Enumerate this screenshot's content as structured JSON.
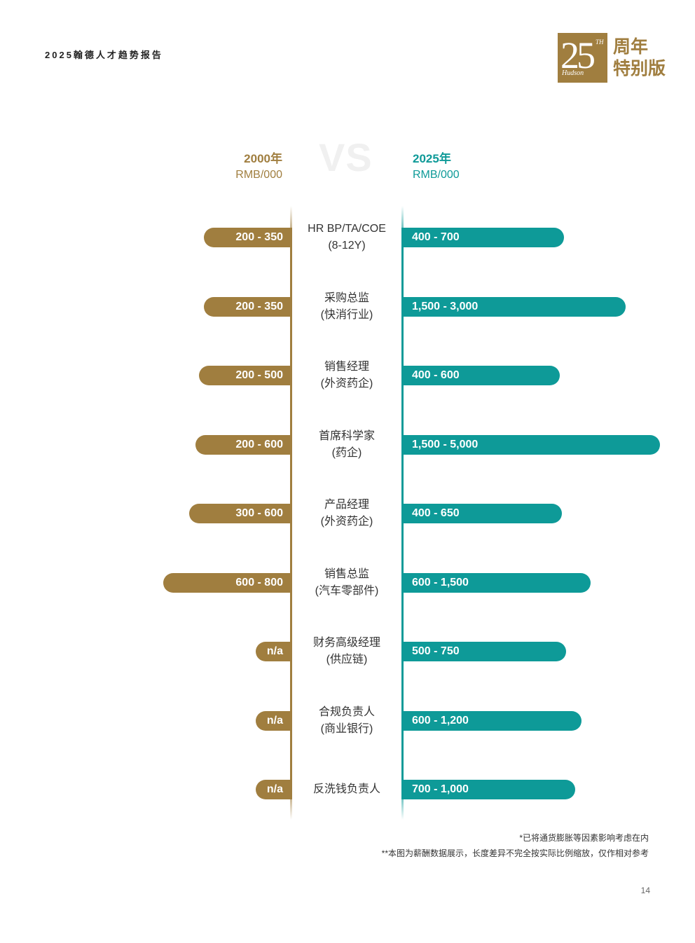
{
  "header": {
    "report_title": "2025翰德人才趋势报告",
    "logo": {
      "number": "25",
      "superscript": "TH",
      "brand": "Hudson",
      "line1": "周年",
      "line2": "特别版"
    }
  },
  "legend": {
    "left_year": "2000年",
    "left_unit": "RMB/000",
    "vs": "VS",
    "right_year": "2025年",
    "right_unit": "RMB/000"
  },
  "colors": {
    "gold": "#a07e3f",
    "teal": "#0e9a98"
  },
  "chart_data": {
    "type": "bar",
    "orientation": "horizontal-diverging",
    "rows": [
      {
        "label_line1": "HR BP/TA/COE",
        "label_line2": "(8-12Y)",
        "left_label": "200 - 350",
        "left_range": [
          200,
          350
        ],
        "right_label": "400 - 700",
        "right_range": [
          400,
          700
        ]
      },
      {
        "label_line1": "采购总监",
        "label_line2": "(快消行业)",
        "left_label": "200 - 350",
        "left_range": [
          200,
          350
        ],
        "right_label": "1,500 - 3,000",
        "right_range": [
          1500,
          3000
        ]
      },
      {
        "label_line1": "销售经理",
        "label_line2": "(外资药企)",
        "left_label": "200 - 500",
        "left_range": [
          200,
          500
        ],
        "right_label": "400 - 600",
        "right_range": [
          400,
          600
        ]
      },
      {
        "label_line1": "首席科学家",
        "label_line2": "(药企)",
        "left_label": "200 - 600",
        "left_range": [
          200,
          600
        ],
        "right_label": "1,500 - 5,000",
        "right_range": [
          1500,
          5000
        ]
      },
      {
        "label_line1": "产品经理",
        "label_line2": "(外资药企)",
        "left_label": "300 - 600",
        "left_range": [
          300,
          600
        ],
        "right_label": "400 - 650",
        "right_range": [
          400,
          650
        ]
      },
      {
        "label_line1": "销售总监",
        "label_line2": "(汽车零部件)",
        "left_label": "600 - 800",
        "left_range": [
          600,
          800
        ],
        "right_label": "600 - 1,500",
        "right_range": [
          600,
          1500
        ]
      },
      {
        "label_line1": "财务高级经理",
        "label_line2": "(供应链)",
        "left_label": "n/a",
        "left_range": null,
        "right_label": "500 - 750",
        "right_range": [
          500,
          750
        ]
      },
      {
        "label_line1": "合规负责人",
        "label_line2": "(商业银行)",
        "left_label": "n/a",
        "left_range": null,
        "right_label": "600 - 1,200",
        "right_range": [
          600,
          1200
        ]
      },
      {
        "label_line1": "反洗钱负责人",
        "label_line2": "",
        "left_label": "n/a",
        "left_range": null,
        "right_label": "700 - 1,000",
        "right_range": [
          700,
          1000
        ]
      }
    ]
  },
  "footnotes": {
    "note1": "*已将通货膨胀等因素影响考虑在内",
    "note2": "**本图为薪酬数据展示，长度差异不完全按实际比例缩放，仅作相对参考"
  },
  "page_number": "14"
}
